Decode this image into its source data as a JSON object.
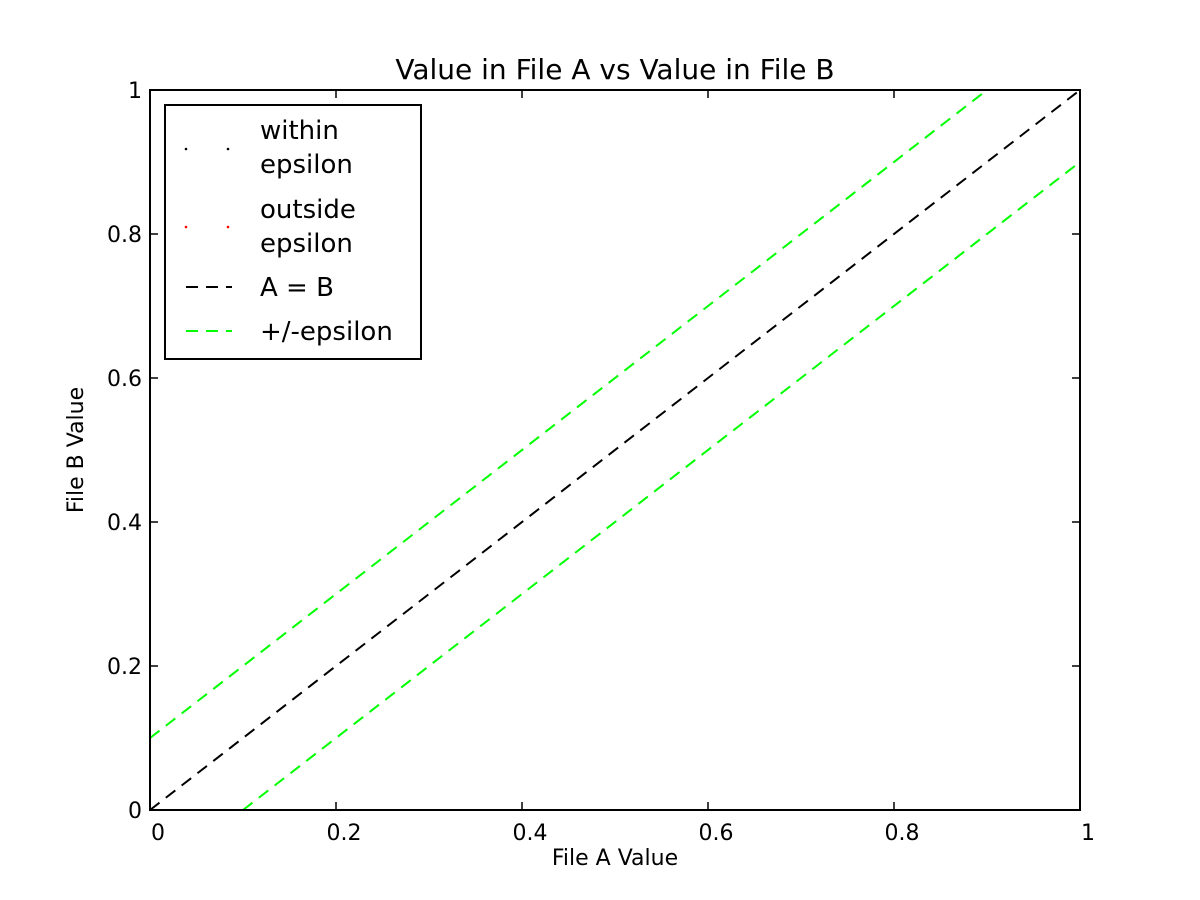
{
  "chart_data": {
    "type": "line",
    "title": "Value in File A vs Value in File B",
    "xlabel": "File A Value",
    "ylabel": "File B Value",
    "xlim": [
      0,
      1
    ],
    "ylim": [
      0,
      1
    ],
    "xticks": [
      "0",
      "0.2",
      "0.4",
      "0.6",
      "0.8",
      "1"
    ],
    "yticks": [
      "0",
      "0.2",
      "0.4",
      "0.6",
      "0.8",
      "1"
    ],
    "xtick_values": [
      0,
      0.2,
      0.4,
      0.6,
      0.8,
      1
    ],
    "ytick_values": [
      0,
      0.2,
      0.4,
      0.6,
      0.8,
      1
    ],
    "grid": false,
    "legend_position": "top-left",
    "series": [
      {
        "name": "within epsilon",
        "kind": "points",
        "color": "#000000",
        "x": [],
        "y": []
      },
      {
        "name": "outside epsilon",
        "kind": "points",
        "color": "#ff0000",
        "x": [],
        "y": []
      },
      {
        "name": "A = B",
        "kind": "dashed-line",
        "color": "#000000",
        "x": [
          0,
          1
        ],
        "y": [
          0,
          1
        ]
      },
      {
        "name": "+/-epsilon",
        "kind": "dashed-line",
        "color": "#00ff00",
        "x": [
          0,
          0.9
        ],
        "y": [
          0.1,
          1.0
        ]
      },
      {
        "name": "+/-epsilon",
        "kind": "dashed-line",
        "color": "#00ff00",
        "x": [
          0.1,
          1.0
        ],
        "y": [
          0,
          0.9
        ],
        "legend": false
      }
    ],
    "legend": {
      "entries": [
        {
          "line1": "within",
          "line2": "epsilon",
          "kind": "points",
          "color": "#000000"
        },
        {
          "line1": "outside",
          "line2": "epsilon",
          "kind": "points",
          "color": "#ff0000"
        },
        {
          "line1": "A = B",
          "kind": "dashed-line",
          "color": "#000000"
        },
        {
          "line1": "+/-epsilon",
          "kind": "dashed-line",
          "color": "#00ff00"
        }
      ]
    }
  }
}
